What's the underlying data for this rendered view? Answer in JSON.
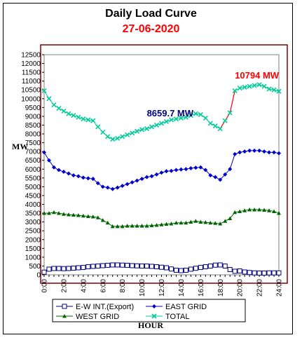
{
  "header": {
    "title": "Daily Load Curve",
    "date": "27-06-2020"
  },
  "chart_data": {
    "type": "line",
    "title": "Daily Load Curve",
    "subtitle": "27-06-2020",
    "xlabel": "HOUR",
    "ylabel": "MW",
    "xlim": [
      0,
      24
    ],
    "ylim": [
      0,
      12500
    ],
    "y_ticks": [
      0,
      500,
      1000,
      1500,
      2000,
      2500,
      3000,
      3500,
      4000,
      4500,
      5000,
      5500,
      6000,
      6500,
      7000,
      7500,
      8000,
      8500,
      9000,
      9500,
      10000,
      10500,
      11000,
      11500,
      12000,
      12500
    ],
    "x_tick_labels": [
      "0:00",
      "2:00",
      "4:00",
      "6:00",
      "8:00",
      "10:00",
      "12:00",
      "14:00",
      "16:00",
      "18:00",
      "20:00",
      "22:00",
      "24:00"
    ],
    "x": [
      0,
      0.5,
      1,
      1.5,
      2,
      2.5,
      3,
      3.5,
      4,
      4.5,
      5,
      5.5,
      6,
      6.5,
      7,
      7.5,
      8,
      8.5,
      9,
      9.5,
      10,
      10.5,
      11,
      11.5,
      12,
      12.5,
      13,
      13.5,
      14,
      14.5,
      15,
      15.5,
      16,
      16.5,
      17,
      17.5,
      18,
      18.5,
      19,
      19.5,
      20,
      20.5,
      21,
      21.5,
      22,
      22.5,
      23,
      23.5,
      24
    ],
    "series": [
      {
        "name": "E-W INT.(Export)",
        "color": "#000080",
        "marker": "square",
        "values": [
          150,
          320,
          360,
          360,
          350,
          360,
          380,
          400,
          420,
          460,
          480,
          500,
          520,
          540,
          560,
          560,
          550,
          540,
          520,
          510,
          500,
          500,
          480,
          460,
          430,
          400,
          330,
          260,
          240,
          260,
          320,
          370,
          420,
          460,
          500,
          550,
          560,
          500,
          300,
          200,
          220,
          160,
          130,
          110,
          100,
          100,
          110,
          110,
          110
        ]
      },
      {
        "name": "EAST GRID",
        "color": "#0000cc",
        "marker": "diamond",
        "values": [
          6950,
          6500,
          6100,
          5950,
          5850,
          5750,
          5650,
          5600,
          5520,
          5480,
          5450,
          5200,
          5000,
          4950,
          4870,
          4950,
          5050,
          5150,
          5250,
          5350,
          5450,
          5550,
          5600,
          5700,
          5800,
          5880,
          5900,
          5950,
          5980,
          6000,
          6050,
          6080,
          6100,
          5950,
          5650,
          5550,
          5400,
          5700,
          6000,
          6850,
          6950,
          7000,
          7050,
          7050,
          7050,
          7000,
          6950,
          6950,
          6900
        ]
      },
      {
        "name": "WEST GRID",
        "color": "#006400",
        "marker": "triangle",
        "values": [
          3500,
          3500,
          3550,
          3500,
          3450,
          3420,
          3400,
          3380,
          3350,
          3320,
          3300,
          3250,
          3100,
          2950,
          2750,
          2750,
          2750,
          2780,
          2780,
          2780,
          2780,
          2780,
          2800,
          2820,
          2850,
          2880,
          2900,
          2950,
          2950,
          2950,
          3000,
          3050,
          3000,
          2980,
          2950,
          2930,
          2900,
          3050,
          3200,
          3550,
          3600,
          3650,
          3700,
          3700,
          3700,
          3680,
          3650,
          3600,
          3500
        ]
      },
      {
        "name": "TOTAL",
        "color": "#00cc99",
        "marker": "x",
        "values": [
          10450,
          10000,
          9650,
          9450,
          9300,
          9150,
          9050,
          8950,
          8850,
          8800,
          8750,
          8400,
          8100,
          7850,
          7700,
          7750,
          7850,
          7950,
          8050,
          8150,
          8250,
          8300,
          8400,
          8500,
          8600,
          8700,
          8800,
          8850,
          8900,
          8950,
          9050,
          9150,
          9100,
          8900,
          8600,
          8450,
          8300,
          8750,
          9200,
          10450,
          10600,
          10650,
          10700,
          10750,
          10794,
          10700,
          10550,
          10500,
          10420
        ]
      }
    ],
    "annotations": [
      {
        "text": "8659.7 MW",
        "x": 10.5,
        "y": 9000,
        "color": "#000080"
      },
      {
        "text": "10794 MW",
        "x": 19.5,
        "y": 11150,
        "color": "#ff0000"
      }
    ],
    "highlight_segment": {
      "series": "TOTAL",
      "from_x": 18,
      "to_x": 19.5,
      "color": "#ff0000"
    },
    "legend": {
      "placement": "bottom",
      "columns": 2
    },
    "grid": false,
    "plot_background": "#ffffff"
  }
}
